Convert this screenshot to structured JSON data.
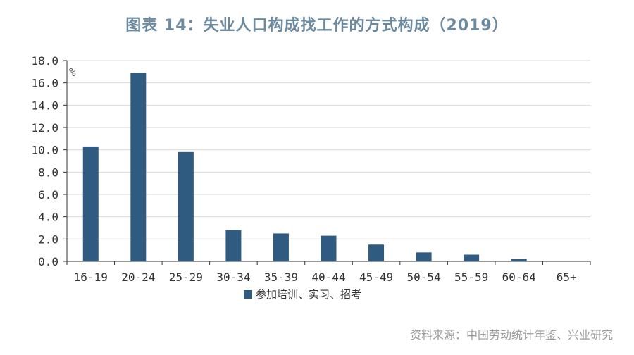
{
  "title": "图表 14：失业人口构成找工作的方式构成（2019）",
  "source": "资料来源：中国劳动统计年鉴、兴业研究",
  "colors": {
    "bar": "#2f5b80",
    "axis": "#333333",
    "grid": "#d9d9d9",
    "title": "#6b8aa0",
    "source": "#9a9a9a"
  },
  "chart_data": {
    "type": "bar",
    "title": "图表 14：失业人口构成找工作的方式构成（2019）",
    "xlabel": "",
    "ylabel": "%",
    "ylim": [
      0,
      18
    ],
    "yticks": [
      "0.0",
      "2.0",
      "4.0",
      "6.0",
      "8.0",
      "10.0",
      "12.0",
      "14.0",
      "16.0",
      "18.0"
    ],
    "categories": [
      "16-19",
      "20-24",
      "25-29",
      "30-34",
      "35-39",
      "40-44",
      "45-49",
      "50-54",
      "55-59",
      "60-64",
      "65+"
    ],
    "series": [
      {
        "name": "参加培训、实习、招考",
        "values": [
          10.3,
          16.9,
          9.8,
          2.8,
          2.5,
          2.3,
          1.5,
          0.8,
          0.6,
          0.2,
          0.0
        ]
      }
    ],
    "grid": true,
    "legend": "bottom-center"
  }
}
